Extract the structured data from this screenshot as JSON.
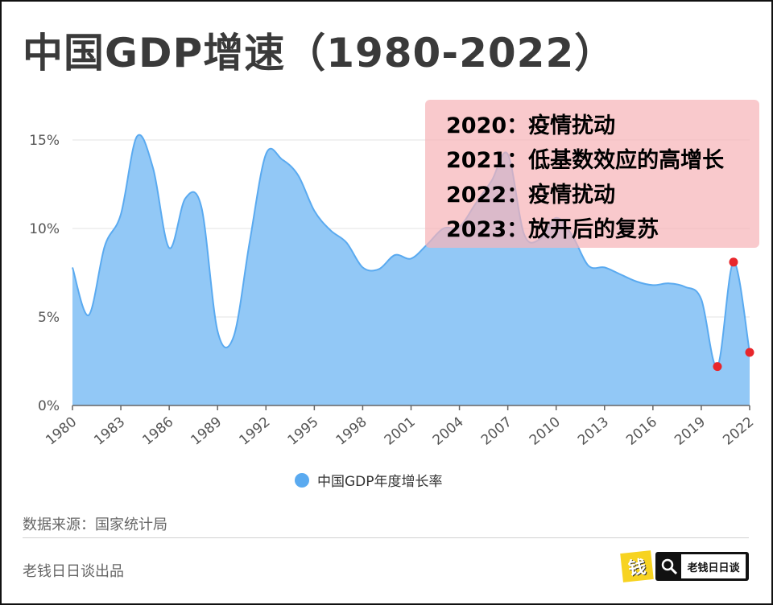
{
  "header": {
    "title": "中国GDP增速（1980-2022）"
  },
  "annotation": {
    "lines": [
      "2020：疫情扰动",
      "2021：低基数效应的高增长",
      "2022：疫情扰动",
      "2023：放开后的复苏"
    ]
  },
  "footer": {
    "source": "数据来源：国家统计局",
    "producer": "老钱日日谈出品",
    "logo_mark_text": "钱",
    "logo_text": "老钱日日谈"
  },
  "colors": {
    "area": "#8cc5f6",
    "line": "#5aaaf0",
    "highlight": "#e8262b",
    "grid": "#e3e3e3"
  },
  "chart_data": {
    "type": "area",
    "title": "中国GDP增速（1980-2022）",
    "legend": "中国GDP年度增长率",
    "legend_position": "bottom",
    "x": [
      1980,
      1981,
      1982,
      1983,
      1984,
      1985,
      1986,
      1987,
      1988,
      1989,
      1990,
      1991,
      1992,
      1993,
      1994,
      1995,
      1996,
      1997,
      1998,
      1999,
      2000,
      2001,
      2002,
      2003,
      2004,
      2005,
      2006,
      2007,
      2008,
      2009,
      2010,
      2011,
      2012,
      2013,
      2014,
      2015,
      2016,
      2017,
      2018,
      2019,
      2020,
      2021,
      2022
    ],
    "values": [
      7.8,
      5.1,
      9.0,
      10.8,
      15.2,
      13.4,
      8.9,
      11.7,
      11.2,
      4.2,
      3.9,
      9.3,
      14.2,
      13.9,
      13.0,
      11.0,
      9.9,
      9.2,
      7.8,
      7.7,
      8.5,
      8.3,
      9.1,
      10.0,
      10.1,
      11.4,
      12.7,
      14.2,
      9.7,
      9.4,
      10.6,
      9.6,
      7.9,
      7.8,
      7.4,
      7.0,
      6.8,
      6.9,
      6.7,
      6.0,
      2.2,
      8.1,
      3.0
    ],
    "highlight_years": [
      2020,
      2021,
      2022
    ],
    "xlim": [
      1980,
      2022
    ],
    "ylim": [
      0,
      17
    ],
    "yticks": [
      0,
      5,
      10,
      15
    ],
    "ytick_labels": [
      "0%",
      "5%",
      "10%",
      "15%"
    ],
    "xticks": [
      1980,
      1983,
      1986,
      1989,
      1992,
      1995,
      1998,
      2001,
      2004,
      2007,
      2010,
      2013,
      2016,
      2019,
      2022
    ],
    "xtick_labels": [
      "1980",
      "1983",
      "1986",
      "1989",
      "1992",
      "1995",
      "1998",
      "2001",
      "2004",
      "2007",
      "2010",
      "2013",
      "2016",
      "2019",
      "2022"
    ],
    "grid": true
  }
}
